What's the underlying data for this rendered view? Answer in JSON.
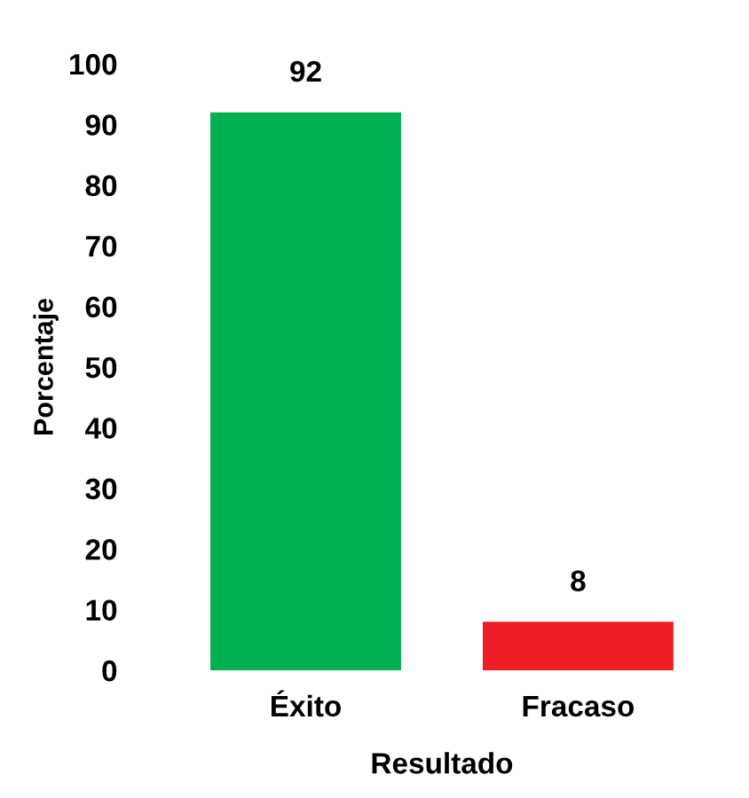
{
  "chart_data": {
    "type": "bar",
    "xlabel": "Resultado",
    "ylabel": "Porcentaje",
    "categories": [
      "Éxito",
      "Fracaso"
    ],
    "values": [
      92,
      8
    ],
    "colors": [
      "#00b050",
      "#ee1c24"
    ],
    "ylim": [
      0,
      100
    ],
    "yticks": [
      0,
      10,
      20,
      30,
      40,
      50,
      60,
      70,
      80,
      90,
      100
    ],
    "data_labels": true,
    "grid": false,
    "legend": false
  }
}
